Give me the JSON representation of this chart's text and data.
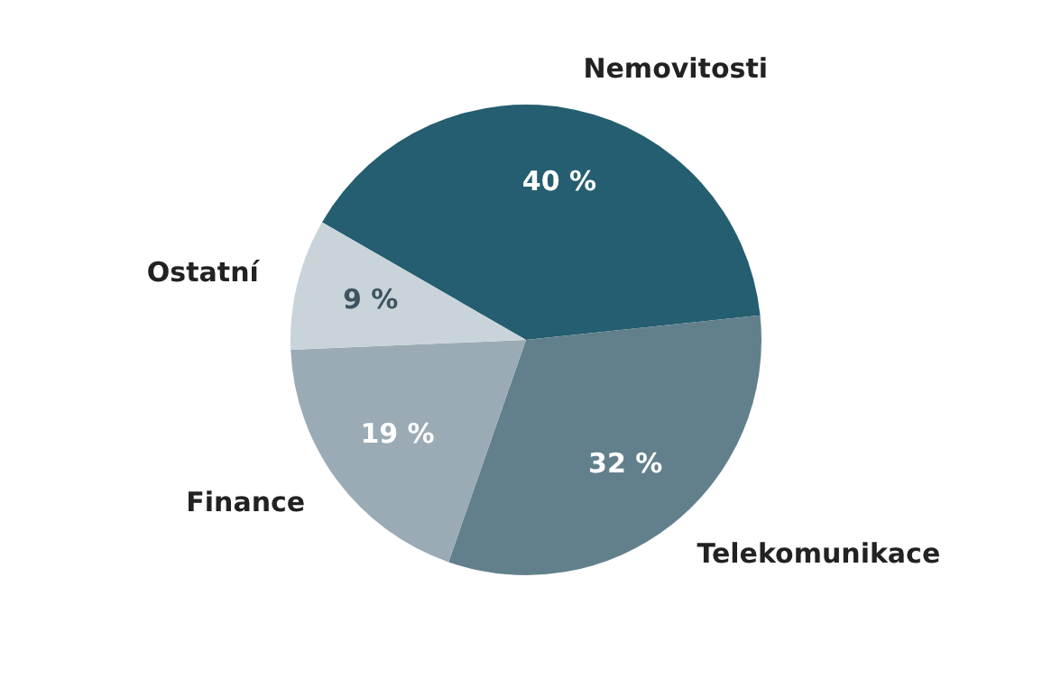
{
  "chart_data": {
    "type": "pie",
    "categories": [
      "Nemovitosti",
      "Telekomunikace",
      "Finance",
      "Ostatní"
    ],
    "values": [
      40,
      32,
      19,
      9
    ],
    "colors": [
      "#245e70",
      "#62808c",
      "#9aabb5",
      "#c9d3da"
    ],
    "value_labels": [
      "40 %",
      "32 %",
      "19 %",
      "9 %"
    ],
    "legend": false
  }
}
